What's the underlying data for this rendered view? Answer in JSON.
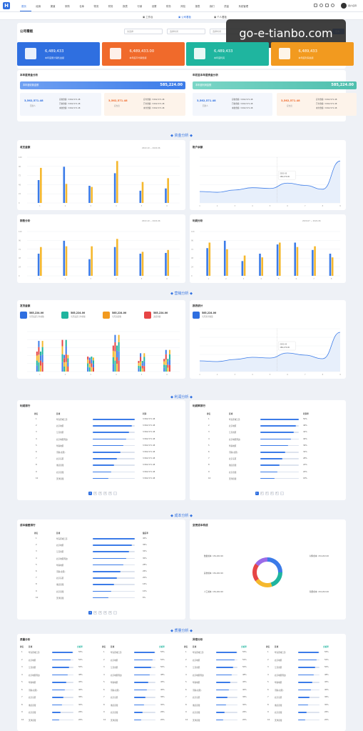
{
  "nav": {
    "items": [
      "首页",
      "经销",
      "渠道",
      "采购",
      "仓库",
      "物流",
      "财务",
      "报表",
      "行销",
      "设置",
      "财务",
      "风险",
      "报表",
      "我们",
      "质量",
      "系统管理"
    ],
    "active_index": 0
  },
  "subnav": {
    "tabs": [
      "工作台",
      "公司看板",
      "个人看板"
    ],
    "active_index": 1
  },
  "board": {
    "title": "公司看板",
    "filter1": "请选择",
    "filter2": "选择时间",
    "filter3": "选择时间",
    "reset": "重置",
    "search": "查询"
  },
  "watermark": "go-e-tianbo.com",
  "kpis": [
    {
      "value": "6,489,433",
      "label": "本年度累计销售金额",
      "color": "#2f6fe0"
    },
    {
      "value": "6,489,433.00",
      "label": "本年度平均销售额",
      "color": "#f06a2b"
    },
    {
      "value": "6,489,433",
      "label": "本年度利润",
      "color": "#1fb59f"
    },
    {
      "value": "6,489,433",
      "label": "本年度利润总额",
      "color": "#f29a1f"
    }
  ],
  "funds": {
    "left": {
      "title": "本年度资金分析",
      "bar_label": "本年度收款金额",
      "bar_value": "585,224.00",
      "box1": {
        "value": "3,562,571.48",
        "label": "回款人",
        "lines": [
          "应收金额: 3,562,571.48",
          "已收金额: 3,562,571.48",
          "未收金额: 3,562,571.48"
        ]
      },
      "box2": {
        "value": "3,562,571.48",
        "label": "应支出",
        "lines": [
          "应付金额: 3,562,571.48",
          "已付金额: 3,562,571.48",
          "未付金额: 3,562,571.48"
        ]
      }
    },
    "right": {
      "title": "年初至本年度资金分析",
      "bar_label": "本年度利润金额",
      "bar_value": "585,224.00",
      "box1": {
        "value": "3,562,571.48",
        "label": "回款人",
        "lines": [
          "应收金额: 3,562,571.48",
          "已收金额: 3,562,571.48",
          "未收金额: 3,562,571.48"
        ]
      },
      "box2": {
        "value": "3,562,571.48",
        "label": "应支出",
        "lines": [
          "应付金额: 3,562,571.48",
          "已付金额: 3,562,571.48",
          "未付金额: 3,562,571.48"
        ]
      }
    }
  },
  "sections": [
    "资金分析",
    "营销分析",
    "利润分析",
    "成本分析",
    "质量分析"
  ],
  "charts": {
    "c1": {
      "title": "收支金额",
      "date1": "2022-10",
      "date2": "2022-06",
      "legend": [
        "收入",
        "支出"
      ]
    },
    "c2": {
      "title": "账户余额",
      "tooltip_date": "2021-03",
      "tooltip_val": "186,270.00"
    },
    "c3": {
      "title": "销售分析",
      "date1": "2022-10",
      "date2": "2022-06"
    },
    "c4": {
      "title": "利润分析",
      "date1": "2020-07",
      "date2": "2022-06"
    },
    "c5": {
      "title": "发货金额"
    },
    "c6": {
      "title": "报表统计",
      "tooltip_date": "2021-03",
      "tooltip_val": "186,270.00"
    }
  },
  "chart_data": [
    {
      "type": "bar",
      "categories": [
        "1",
        "2",
        "3",
        "4",
        "5",
        "6"
      ],
      "series": [
        {
          "name": "收入",
          "values": [
            60,
            95,
            45,
            78,
            32,
            38
          ]
        },
        {
          "name": "支出",
          "values": [
            92,
            50,
            42,
            110,
            55,
            65
          ]
        }
      ],
      "ylim": [
        0,
        120
      ]
    },
    {
      "type": "line",
      "x": [
        "1",
        "2",
        "3",
        "4",
        "5",
        "6",
        "7",
        "8",
        "9"
      ],
      "series": [
        {
          "values": [
            30,
            28,
            34,
            40,
            38,
            52,
            46,
            36,
            110
          ]
        }
      ],
      "ylim": [
        0,
        120
      ]
    },
    {
      "type": "bar",
      "categories": [
        "1",
        "2",
        "3",
        "4",
        "5",
        "6"
      ],
      "series": [
        {
          "values": [
            60,
            95,
            45,
            78,
            60,
            62
          ]
        },
        {
          "values": [
            78,
            80,
            80,
            100,
            65,
            70
          ]
        }
      ],
      "ylim": [
        0,
        120
      ]
    },
    {
      "type": "bar",
      "categories": [
        "1",
        "2",
        "3",
        "4",
        "5",
        "6",
        "7",
        "8"
      ],
      "series": [
        {
          "values": [
            75,
            95,
            40,
            60,
            85,
            90,
            70,
            60
          ]
        },
        {
          "values": [
            90,
            72,
            55,
            50,
            90,
            78,
            80,
            50
          ]
        }
      ],
      "ylim": [
        0,
        120
      ]
    }
  ],
  "marketing": {
    "cards": [
      {
        "value": "585,224.00",
        "label": "当月发货订单总数",
        "color": "#2f6fe0"
      },
      {
        "value": "585,224.00",
        "label": "当月发货订单金额",
        "color": "#1fb59f"
      },
      {
        "value": "585,224.00",
        "label": "当月退货数",
        "color": "#f29a1f"
      },
      {
        "value": "585,224.00",
        "label": "退货金额",
        "color": "#e64545"
      }
    ],
    "card_right": {
      "value": "585,224.00",
      "label": "当月累计数量"
    }
  },
  "profit": {
    "left": {
      "title": "利润排行",
      "headers": [
        "排名",
        "区域",
        "利润"
      ],
      "rows": [
        [
          "1",
          "华东区域江苏",
          "3,562,571.48"
        ],
        [
          "2",
          "北京地区",
          "3,562,571.48"
        ],
        [
          "3",
          "江苏省区",
          "3,562,571.48"
        ],
        [
          "4",
          "北京地区周边",
          "3,562,571.48"
        ],
        [
          "5",
          "华南地区",
          "3,562,571.48"
        ],
        [
          "6",
          "河南(北区)",
          "3,562,571.48"
        ],
        [
          "7",
          "北京东区",
          "3,562,571.48"
        ],
        [
          "8",
          "重庆直辖",
          "3,562,571.48"
        ],
        [
          "9",
          "北京直辖",
          "3,562,571.48"
        ],
        [
          "10",
          "天津直辖",
          "3,562,571.48"
        ]
      ]
    },
    "right": {
      "title": "利润率排行",
      "headers": [
        "排名",
        "区域",
        "利润率"
      ],
      "rows": [
        [
          "1",
          "华东区域江苏",
          "50%"
        ],
        [
          "2",
          "北京地区",
          "46%"
        ],
        [
          "3",
          "江苏省区",
          "42%"
        ],
        [
          "4",
          "北京地区周边",
          "40%"
        ],
        [
          "5",
          "华南地区",
          "36%"
        ],
        [
          "6",
          "河南(北区)",
          "32%"
        ],
        [
          "7",
          "北京东区",
          "28%"
        ],
        [
          "8",
          "重庆直辖",
          "24%"
        ],
        [
          "9",
          "北京直辖",
          "20%"
        ],
        [
          "10",
          "天津直辖",
          "18%"
        ]
      ]
    }
  },
  "cost": {
    "left": {
      "title": "成本偏差排行",
      "headers": [
        "排名",
        "区域",
        "偏差率"
      ],
      "rows": [
        [
          "1",
          "华东区域江苏",
          "40%"
        ],
        [
          "2",
          "北京地区",
          "36%"
        ],
        [
          "3",
          "江苏省区",
          "32%"
        ],
        [
          "4",
          "北京地区周边",
          "30%"
        ],
        [
          "5",
          "华南地区",
          "28%"
        ],
        [
          "6",
          "河南(北区)",
          "26%"
        ],
        [
          "7",
          "北京东区",
          "20%"
        ],
        [
          "8",
          "重庆直辖",
          "16%"
        ],
        [
          "9",
          "北京直辖",
          "10%"
        ],
        [
          "10",
          "天津直辖",
          "6%"
        ]
      ]
    },
    "right": {
      "title": "变更成本构成",
      "labels": [
        "数据成本: 154,202.00",
        "其他成本: 154,202.00",
        "人工成本: 154,202.00",
        "材料成本: 154,202.00",
        "税费成本: 154,202.00"
      ]
    }
  },
  "quality": {
    "title_left": "质量分析",
    "title_right": "异常分析",
    "headers": [
      "排名",
      "区域",
      "合格率"
    ],
    "rows": [
      [
        "1",
        "华东区域江苏",
        "55%"
      ],
      [
        "2",
        "北京地区",
        "52%"
      ],
      [
        "3",
        "江苏省区",
        "50%"
      ],
      [
        "4",
        "北京地区周边",
        "48%"
      ],
      [
        "5",
        "华南地区",
        "45%"
      ],
      [
        "6",
        "河南(北区)",
        "40%"
      ],
      [
        "7",
        "北京东区",
        "36%"
      ],
      [
        "8",
        "重庆直辖",
        "30%"
      ],
      [
        "9",
        "北京直辖",
        "26%"
      ],
      [
        "10",
        "天津直辖",
        "20%"
      ]
    ]
  },
  "pagination": [
    "1",
    "2",
    "3",
    "4",
    "5",
    "..."
  ]
}
